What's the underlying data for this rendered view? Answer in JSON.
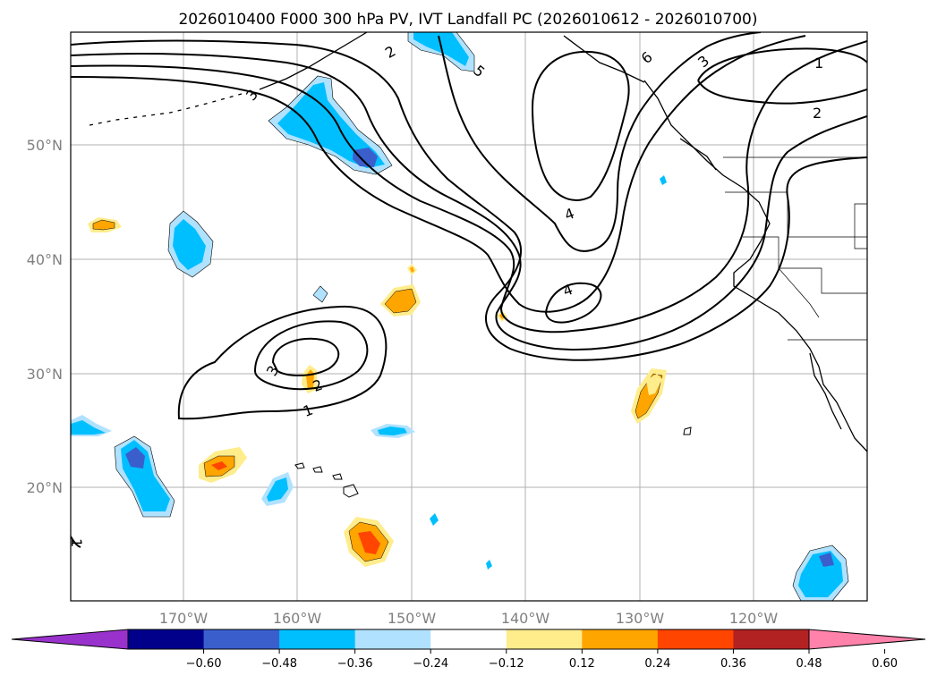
{
  "title": "2026010400 F000 300 hPa PV, IVT Landfall PC (2026010612 - 2026010700)",
  "latitude_labels": [
    "50°N",
    "40°N",
    "30°N",
    "20°N"
  ],
  "longitude_labels": [
    "170°W",
    "160°W",
    "150°W",
    "140°W",
    "130°W",
    "120°W"
  ],
  "colorbar": {
    "ticks": [
      "−0.60",
      "−0.48",
      "−0.36",
      "−0.24",
      "−0.12",
      "0.12",
      "0.24",
      "0.36",
      "0.48",
      "0.60"
    ],
    "colors": [
      "#9932cc",
      "#00008b",
      "#3a5fcd",
      "#00bfff",
      "#b0e2ff",
      "#ffffff",
      "#ffec8b",
      "#ffa500",
      "#ff4500",
      "#b22222",
      "#ff82ab"
    ]
  },
  "contour_labels": [
    "1",
    "2",
    "3",
    "4",
    "4",
    "5",
    "6",
    "1",
    "2",
    "3",
    "1",
    "2",
    "3"
  ],
  "colors": {
    "map_background": "#ffffff",
    "grid": "#b0b0b0",
    "contour": "#000000",
    "tick_text": "#808080"
  }
}
